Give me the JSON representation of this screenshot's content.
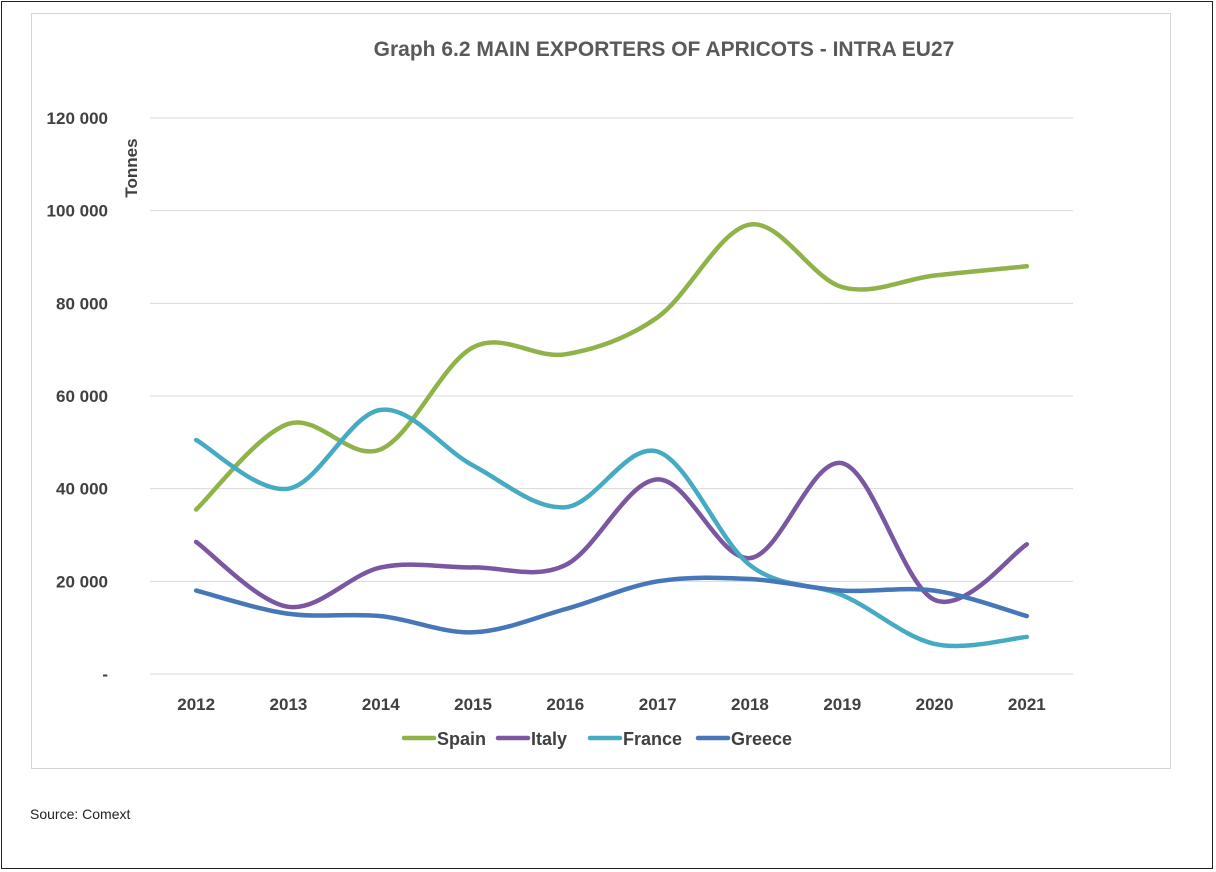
{
  "source": "Source:  Comext",
  "chart_data": {
    "type": "line",
    "title": "Graph 6.2 MAIN EXPORTERS OF APRICOTS - INTRA EU27",
    "xlabel": "",
    "ylabel": "Tonnes",
    "ylim": [
      0,
      120000
    ],
    "yticks": [
      0,
      20000,
      40000,
      60000,
      80000,
      100000,
      120000
    ],
    "ytick_labels": [
      "-",
      "20 000",
      "40 000",
      "60 000",
      "80 000",
      "100 000",
      "120 000"
    ],
    "grid": true,
    "legend_position": "bottom",
    "categories": [
      "2012",
      "2013",
      "2014",
      "2015",
      "2016",
      "2017",
      "2018",
      "2019",
      "2020",
      "2021"
    ],
    "series": [
      {
        "name": "Spain",
        "color": "#8fb348",
        "values": [
          35500,
          54000,
          48500,
          70500,
          69000,
          77000,
          97000,
          83500,
          86000,
          88000
        ]
      },
      {
        "name": "Italy",
        "color": "#7a57a0",
        "values": [
          28500,
          14500,
          23000,
          23000,
          23500,
          42000,
          25000,
          45500,
          16000,
          28000
        ]
      },
      {
        "name": "France",
        "color": "#45abc3",
        "values": [
          50500,
          40000,
          57000,
          45000,
          36000,
          48000,
          23500,
          17000,
          6500,
          8000
        ]
      },
      {
        "name": "Greece",
        "color": "#4677b8",
        "values": [
          18000,
          13000,
          12500,
          9000,
          14000,
          20000,
          20500,
          18000,
          18000,
          12500
        ]
      }
    ]
  }
}
